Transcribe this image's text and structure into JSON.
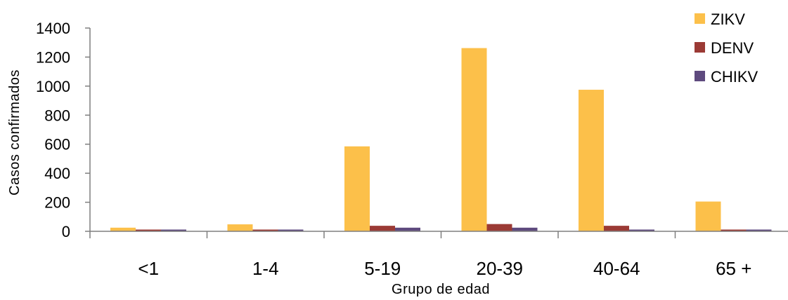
{
  "chart_data": {
    "type": "bar",
    "title": "",
    "xlabel": "Grupo de edad",
    "ylabel": "Casos confirmados",
    "ylim": [
      0,
      1400
    ],
    "yticks": [
      0,
      200,
      400,
      600,
      800,
      1000,
      1200,
      1400
    ],
    "grid": false,
    "legend_position": "top-right",
    "categories": [
      "<1",
      "1-4",
      "5-19",
      "20-39",
      "40-64",
      "65 +"
    ],
    "series": [
      {
        "name": "ZIKV",
        "color": "#FCC04A",
        "values": [
          25,
          48,
          585,
          1262,
          975,
          205
        ]
      },
      {
        "name": "DENV",
        "color": "#9B3A35",
        "values": [
          12,
          12,
          38,
          50,
          38,
          12
        ]
      },
      {
        "name": "CHIKV",
        "color": "#5E4A7E",
        "values": [
          12,
          12,
          25,
          25,
          12,
          12
        ]
      }
    ]
  }
}
